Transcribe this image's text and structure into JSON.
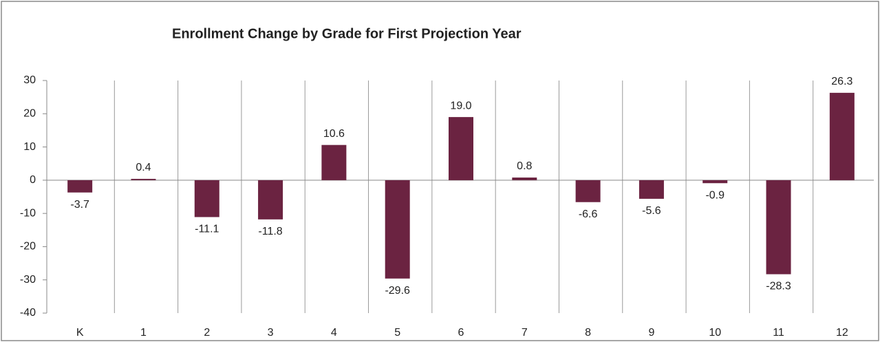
{
  "chart_data": {
    "type": "bar",
    "title": "Enrollment Change by Grade for First Projection Year",
    "categories": [
      "K",
      "1",
      "2",
      "3",
      "4",
      "5",
      "6",
      "7",
      "8",
      "9",
      "10",
      "11",
      "12"
    ],
    "values": [
      -3.7,
      0.4,
      -11.1,
      -11.8,
      10.6,
      -29.6,
      19.0,
      0.8,
      -6.6,
      -5.6,
      -0.9,
      -28.3,
      26.3
    ],
    "value_labels": [
      "-3.7",
      "0.4",
      "-11.1",
      "-11.8",
      "10.6",
      "-29.6",
      "19.0",
      "0.8",
      "-6.6",
      "-5.6",
      "-0.9",
      "-28.3",
      "26.3"
    ],
    "color": "#6b2341",
    "ylim": [
      -40,
      30
    ],
    "yticks": [
      -40,
      -30,
      -20,
      -10,
      0,
      10,
      20,
      30
    ]
  }
}
